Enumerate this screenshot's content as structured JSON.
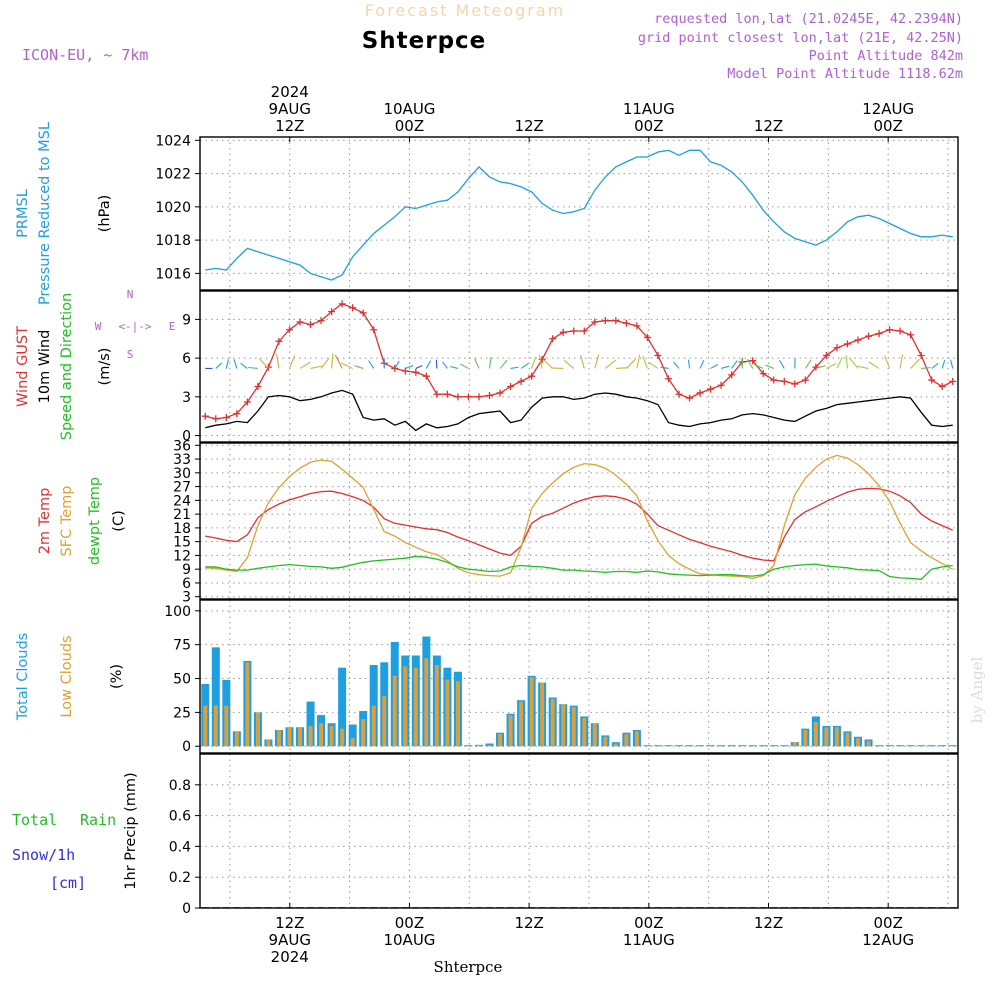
{
  "header": {
    "title_faint": "Forecast Meteogram",
    "location": "Shterpce",
    "model": "ICON-EU, ~ 7km",
    "requested": "requested lon,lat (21.0245E, 42.2394N)",
    "grid_point": "grid point closest lon,lat (21E, 42.25N)",
    "point_altitude": "Point Altitude 842m",
    "model_altitude": "Model Point Altitude 1118.62m",
    "watermark": "by Angel",
    "bottom_label": "Shterpce"
  },
  "colors": {
    "pressure": "#1e9fe0",
    "gust": "#e03030",
    "wind": "#000000",
    "temp2m": "#e03030",
    "sfctemp": "#e0a030",
    "dewpt": "#20c020",
    "total_cloud": "#1e9fe0",
    "low_cloud": "#d8a040",
    "rain": "#20c020",
    "snow": "#3030e0",
    "header_purple": "#b060d0",
    "title_faint": "#f0d8a8"
  },
  "time_axis": {
    "hours_span": [
      0,
      76
    ],
    "top_ticks": [
      {
        "hour": 9,
        "lines": [
          "2024",
          "9AUG",
          "12Z"
        ]
      },
      {
        "hour": 21,
        "lines": [
          "10AUG",
          "00Z"
        ]
      },
      {
        "hour": 33,
        "lines": [
          "12Z"
        ]
      },
      {
        "hour": 45,
        "lines": [
          "11AUG",
          "00Z"
        ]
      },
      {
        "hour": 57,
        "lines": [
          "12Z"
        ]
      },
      {
        "hour": 69,
        "lines": [
          "12AUG",
          "00Z"
        ]
      }
    ],
    "bottom_ticks": [
      {
        "hour": 9,
        "lines": [
          "12Z",
          "9AUG",
          "2024"
        ]
      },
      {
        "hour": 21,
        "lines": [
          "00Z",
          "10AUG"
        ]
      },
      {
        "hour": 33,
        "lines": [
          "12Z"
        ]
      },
      {
        "hour": 45,
        "lines": [
          "00Z",
          "11AUG"
        ]
      },
      {
        "hour": 57,
        "lines": [
          "12Z"
        ]
      },
      {
        "hour": 69,
        "lines": [
          "00Z",
          "12AUG"
        ]
      }
    ]
  },
  "chart_data": [
    {
      "type": "line",
      "id": "pressure",
      "ylabel_lines": [
        "PRMSL",
        "Pressure Reduced to MSL"
      ],
      "unit": "(hPa)",
      "ylim": [
        1015,
        1024.2
      ],
      "yticks": [
        1016,
        1018,
        1020,
        1022,
        1024
      ],
      "grid": true,
      "series": [
        {
          "name": "PRMSL",
          "values": [
            1016.2,
            1016.3,
            1016.2,
            1016.9,
            1017.5,
            1017.3,
            1017.1,
            1016.9,
            1016.7,
            1016.5,
            1016.0,
            1015.8,
            1015.6,
            1015.9,
            1017.0,
            1017.7,
            1018.4,
            1018.9,
            1019.4,
            1020.0,
            1019.9,
            1020.1,
            1020.3,
            1020.4,
            1020.9,
            1021.7,
            1022.4,
            1021.8,
            1021.5,
            1021.4,
            1021.2,
            1020.9,
            1020.2,
            1019.8,
            1019.6,
            1019.7,
            1019.9,
            1021.0,
            1021.8,
            1022.4,
            1022.7,
            1023.0,
            1023.0,
            1023.3,
            1023.4,
            1023.1,
            1023.4,
            1023.4,
            1022.7,
            1022.5,
            1022.1,
            1021.5,
            1020.7,
            1019.8,
            1019.1,
            1018.5,
            1018.1,
            1017.9,
            1017.7,
            1018.0,
            1018.5,
            1019.1,
            1019.4,
            1019.5,
            1019.3,
            1019.0,
            1018.7,
            1018.4,
            1018.2,
            1018.2,
            1018.3,
            1018.2
          ]
        }
      ]
    },
    {
      "type": "line",
      "id": "wind",
      "ylabel_lines": [
        "Wind GUST",
        "10m Wind",
        "Speed and Direction"
      ],
      "unit": "(m/s)",
      "compass": {
        "n": "N",
        "w": "W",
        "e": "E",
        "s": "S",
        "arrow": "<-|->"
      },
      "ylim": [
        -0.5,
        11.2
      ],
      "yticks": [
        0,
        3,
        6,
        9
      ],
      "grid": true,
      "series": [
        {
          "name": "Wind GUST",
          "values": [
            1.5,
            1.3,
            1.4,
            1.7,
            2.6,
            3.8,
            5.3,
            7.3,
            8.2,
            8.8,
            8.6,
            8.9,
            9.6,
            10.2,
            9.9,
            9.5,
            8.2,
            5.6,
            5.2,
            5.0,
            4.9,
            4.6,
            3.2,
            3.2,
            3.0,
            3.0,
            3.0,
            3.1,
            3.3,
            3.8,
            4.2,
            4.6,
            5.9,
            7.5,
            8.0,
            8.1,
            8.1,
            8.8,
            8.9,
            8.9,
            8.7,
            8.5,
            7.6,
            6.2,
            4.4,
            3.2,
            2.9,
            3.3,
            3.6,
            3.9,
            4.7,
            5.7,
            5.8,
            4.8,
            4.3,
            4.2,
            4.0,
            4.3,
            5.3,
            6.2,
            6.8,
            7.1,
            7.4,
            7.7,
            7.9,
            8.2,
            8.1,
            7.8,
            6.2,
            4.3,
            3.8,
            4.2
          ]
        },
        {
          "name": "10m Wind",
          "values": [
            0.6,
            0.8,
            0.9,
            1.1,
            1.0,
            1.9,
            3.0,
            3.1,
            3.0,
            2.7,
            2.8,
            3.0,
            3.3,
            3.5,
            3.2,
            1.4,
            1.2,
            1.3,
            0.8,
            1.1,
            0.4,
            0.9,
            0.6,
            0.7,
            0.9,
            1.4,
            1.7,
            1.8,
            1.9,
            1.0,
            1.2,
            2.2,
            2.9,
            3.0,
            3.0,
            2.8,
            2.9,
            3.2,
            3.3,
            3.2,
            3.0,
            2.9,
            2.7,
            2.4,
            1.0,
            0.8,
            0.7,
            0.9,
            1.0,
            1.2,
            1.3,
            1.6,
            1.7,
            1.6,
            1.4,
            1.2,
            1.1,
            1.5,
            1.9,
            2.1,
            2.4,
            2.5,
            2.6,
            2.7,
            2.8,
            2.9,
            3.0,
            2.9,
            1.8,
            0.8,
            0.7,
            0.8
          ]
        }
      ]
    },
    {
      "type": "line",
      "id": "temperature",
      "ylabel_lines": [
        "2m Temp",
        "SFC Temp",
        "dewpt Temp"
      ],
      "unit": "(C)",
      "ylim": [
        2.5,
        36.5
      ],
      "yticks": [
        3,
        6,
        9,
        12,
        15,
        18,
        21,
        24,
        27,
        30,
        33,
        36
      ],
      "grid": true,
      "series": [
        {
          "name": "2m Temp",
          "values": [
            16.2,
            15.8,
            15.3,
            15.0,
            16.5,
            20.2,
            22.0,
            23.2,
            24.1,
            24.8,
            25.5,
            25.9,
            26.0,
            25.5,
            24.8,
            24.0,
            22.5,
            20.0,
            19.0,
            18.6,
            18.2,
            17.8,
            17.6,
            17.0,
            16.0,
            15.2,
            14.3,
            13.4,
            12.5,
            12.0,
            14.0,
            19.0,
            20.5,
            21.2,
            22.3,
            23.4,
            24.2,
            24.8,
            25.0,
            24.8,
            24.2,
            23.2,
            21.0,
            18.5,
            17.5,
            16.5,
            15.5,
            14.8,
            14.0,
            13.4,
            12.8,
            12.0,
            11.4,
            11.0,
            10.8,
            16.0,
            19.8,
            21.5,
            22.6,
            23.8,
            24.8,
            25.8,
            26.4,
            26.6,
            26.5,
            26.0,
            25.0,
            23.5,
            21.0,
            19.5,
            18.5,
            17.5
          ]
        },
        {
          "name": "SFC Temp",
          "values": [
            9.3,
            9.2,
            8.8,
            8.5,
            11.5,
            18.5,
            23.5,
            26.8,
            29.2,
            31.0,
            32.3,
            32.8,
            32.5,
            30.8,
            28.8,
            26.8,
            22.0,
            17.2,
            16.2,
            14.8,
            13.8,
            12.8,
            12.2,
            10.8,
            9.2,
            8.2,
            7.8,
            7.6,
            7.5,
            8.2,
            13.8,
            22.2,
            25.5,
            27.8,
            29.8,
            31.2,
            32.0,
            31.8,
            31.0,
            29.5,
            27.5,
            25.0,
            19.5,
            15.2,
            12.0,
            10.2,
            9.0,
            8.0,
            7.8,
            7.6,
            7.5,
            7.4,
            7.0,
            7.6,
            9.8,
            18.5,
            25.2,
            28.8,
            31.2,
            33.0,
            33.8,
            33.2,
            31.8,
            29.8,
            27.2,
            23.8,
            19.0,
            14.8,
            13.0,
            11.5,
            10.2,
            9.0
          ]
        },
        {
          "name": "dewpt Temp",
          "values": [
            9.5,
            9.5,
            9.0,
            8.8,
            8.8,
            9.2,
            9.5,
            9.8,
            10.0,
            9.8,
            9.6,
            9.5,
            9.2,
            9.4,
            10.0,
            10.5,
            10.8,
            11.0,
            11.2,
            11.4,
            11.8,
            11.6,
            11.2,
            10.5,
            9.5,
            9.0,
            8.8,
            8.5,
            8.6,
            9.5,
            9.8,
            9.6,
            9.5,
            9.2,
            8.8,
            8.8,
            8.6,
            8.5,
            8.3,
            8.5,
            8.5,
            8.3,
            8.6,
            8.4,
            8.0,
            7.8,
            7.7,
            7.6,
            7.7,
            7.8,
            7.8,
            7.6,
            7.5,
            7.8,
            9.0,
            9.5,
            9.8,
            10.0,
            10.1,
            9.7,
            9.5,
            9.3,
            8.9,
            8.8,
            8.7,
            7.4,
            7.1,
            7.0,
            6.8,
            9.0,
            9.5,
            9.8
          ]
        }
      ]
    },
    {
      "type": "bar",
      "id": "clouds",
      "ylabel_lines": [
        "Total Clouds",
        "Low Clouds"
      ],
      "unit": "(%)",
      "ylim": [
        -5,
        108
      ],
      "yticks": [
        0,
        25,
        50,
        75,
        100
      ],
      "grid": true,
      "series": [
        {
          "name": "Total Clouds",
          "values": [
            46,
            73,
            49,
            11,
            63,
            25,
            5,
            12,
            14,
            14,
            33,
            23,
            17,
            58,
            16,
            26,
            60,
            62,
            77,
            67,
            67,
            81,
            67,
            58,
            55,
            0,
            1,
            2,
            10,
            24,
            34,
            52,
            47,
            36,
            31,
            30,
            22,
            17,
            8,
            3,
            10,
            12,
            0,
            0,
            0,
            0,
            0,
            0,
            0,
            0,
            0,
            0,
            0,
            0,
            0,
            0,
            3,
            13,
            22,
            15,
            15,
            11,
            7,
            5,
            0,
            0,
            0,
            0,
            0,
            0,
            0,
            0
          ]
        },
        {
          "name": "Low Clouds",
          "values": [
            30,
            30,
            30,
            11,
            62,
            25,
            5,
            12,
            14,
            14,
            15,
            17,
            15,
            13,
            6,
            20,
            30,
            37,
            52,
            59,
            58,
            65,
            60,
            49,
            48,
            0,
            1,
            1,
            9,
            23,
            33,
            51,
            47,
            35,
            31,
            29,
            21,
            17,
            7,
            2,
            9,
            11,
            0,
            0,
            0,
            0,
            0,
            0,
            0,
            0,
            0,
            0,
            0,
            0,
            0,
            0,
            3,
            12,
            18,
            14,
            14,
            10,
            6,
            4,
            0,
            0,
            0,
            0,
            0,
            0,
            0,
            0
          ]
        }
      ]
    },
    {
      "type": "bar",
      "id": "precip",
      "ylabel_lines": [
        "1hr Precip (mm)"
      ],
      "legend_lines": {
        "rain_a": "Total",
        "rain_b": "Rain",
        "snow": "Snow/1h",
        "cm": "[cm]"
      },
      "ylim": [
        0,
        1.0
      ],
      "yticks": [
        0,
        0.2,
        0.4,
        0.6,
        0.8
      ],
      "ytick_labels": [
        "0",
        "0.2",
        "0.4",
        "0.6",
        "0.8"
      ],
      "grid": true,
      "series": [
        {
          "name": "Total Rain",
          "values": [
            0,
            0,
            0,
            0,
            0,
            0,
            0,
            0,
            0,
            0,
            0,
            0,
            0,
            0,
            0,
            0,
            0,
            0,
            0,
            0,
            0,
            0,
            0,
            0,
            0,
            0,
            0,
            0,
            0,
            0,
            0,
            0,
            0,
            0,
            0,
            0,
            0,
            0,
            0,
            0,
            0,
            0,
            0,
            0,
            0,
            0,
            0,
            0,
            0,
            0,
            0,
            0,
            0,
            0,
            0,
            0,
            0,
            0,
            0,
            0,
            0,
            0,
            0,
            0,
            0,
            0,
            0,
            0,
            0,
            0,
            0,
            0
          ]
        },
        {
          "name": "Snow/1h",
          "values": [
            0,
            0,
            0,
            0,
            0,
            0,
            0,
            0,
            0,
            0,
            0,
            0,
            0,
            0,
            0,
            0,
            0,
            0,
            0,
            0,
            0,
            0,
            0,
            0,
            0,
            0,
            0,
            0,
            0,
            0,
            0,
            0,
            0,
            0,
            0,
            0,
            0,
            0,
            0,
            0,
            0,
            0,
            0,
            0,
            0,
            0,
            0,
            0,
            0,
            0,
            0,
            0,
            0,
            0,
            0,
            0,
            0,
            0,
            0,
            0,
            0,
            0,
            0,
            0,
            0,
            0,
            0,
            0,
            0,
            0,
            0,
            0
          ]
        }
      ]
    }
  ]
}
